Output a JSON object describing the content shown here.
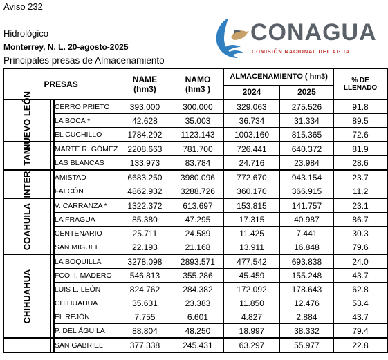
{
  "header": {
    "line1": "Aviso 232",
    "line2": "Hidrológico",
    "line3": "Monterrey, N. L. 20-agosto-2025",
    "line4": "Principales presas de Almacenamiento"
  },
  "logo": {
    "word": "CONAGUA",
    "subtitle": "COMISIÓN NACIONAL DEL AGUA",
    "colors": {
      "blue": "#2f7fc1",
      "red": "#c1342f",
      "gray": "#5a6168",
      "sand": "#c8a06a"
    }
  },
  "table": {
    "col_presas": "PRESAS",
    "col_name": "NAME",
    "col_name_unit": "(hm3)",
    "col_namo": "NAMO",
    "col_namo_unit": "(hm3 )",
    "col_alm": "ALMACENAMIENTO ( hm3)",
    "col_2024": "2024",
    "col_2025": "2025",
    "col_pct": "% DE LLENADO",
    "groups": [
      {
        "state": "NUEVO LEÓN",
        "rows": [
          {
            "presa": "CERRO PRIETO",
            "name": "393.000",
            "namo": "300.000",
            "y2024": "329.063",
            "y2025": "275.526",
            "pct": "91.8"
          },
          {
            "presa": "LA BOCA *",
            "name": "42.628",
            "namo": "35.003",
            "y2024": "36.734",
            "y2025": "31.334",
            "pct": "89.5"
          },
          {
            "presa": "EL CUCHILLO",
            "name": "1784.292",
            "namo": "1123.143",
            "y2024": "1003.160",
            "y2025": "815.365",
            "pct": "72.6"
          }
        ]
      },
      {
        "state": "TAM",
        "rows": [
          {
            "presa": "MARTE R. GÓMEZ",
            "name": "2208.663",
            "namo": "781.700",
            "y2024": "726.441",
            "y2025": "640.372",
            "pct": "81.9"
          },
          {
            "presa": "LAS BLANCAS",
            "name": "133.973",
            "namo": "83.784",
            "y2024": "24.716",
            "y2025": "23.984",
            "pct": "28.6"
          }
        ]
      },
      {
        "state": "INTER",
        "rows": [
          {
            "presa": "AMISTAD",
            "name": "6683.250",
            "namo": "3980.096",
            "y2024": "772.670",
            "y2025": "943.154",
            "pct": "23.7"
          },
          {
            "presa": "FALCÓN",
            "name": "4862.932",
            "namo": "3288.726",
            "y2024": "360.170",
            "y2025": "366.915",
            "pct": "11.2"
          }
        ]
      },
      {
        "state": "COAHUILA",
        "rows": [
          {
            "presa": "V. CARRANZA *",
            "name": "1322.372",
            "namo": "613.697",
            "y2024": "153.815",
            "y2025": "141.757",
            "pct": "23.1"
          },
          {
            "presa": "LA FRAGUA",
            "name": "85.380",
            "namo": "47.295",
            "y2024": "17.315",
            "y2025": "40.987",
            "pct": "86.7"
          },
          {
            "presa": "CENTENARIO",
            "name": "25.711",
            "namo": "24.589",
            "y2024": "11.425",
            "y2025": "7.441",
            "pct": "30.3"
          },
          {
            "presa": "SAN MIGUEL",
            "name": "22.193",
            "namo": "21.168",
            "y2024": "13.911",
            "y2025": "16.848",
            "pct": "79.6"
          }
        ]
      },
      {
        "state": "CHIHUAHUA",
        "rows": [
          {
            "presa": "LA BOQUILLA",
            "name": "3278.098",
            "namo": "2893.571",
            "y2024": "477.542",
            "y2025": "693.838",
            "pct": "24.0"
          },
          {
            "presa": "FCO. I. MADERO",
            "name": "546.813",
            "namo": "355.286",
            "y2024": "45.459",
            "y2025": "155.248",
            "pct": "43.7"
          },
          {
            "presa": "LUIS L. LEÓN",
            "name": "824.762",
            "namo": "284.382",
            "y2024": "172.092",
            "y2025": "178.643",
            "pct": "62.8"
          },
          {
            "presa": "CHIHUAHUA",
            "name": "35.631",
            "namo": "23.383",
            "y2024": "11.850",
            "y2025": "12.476",
            "pct": "53.4"
          },
          {
            "presa": "EL REJÓN",
            "name": "7.755",
            "namo": "6.601",
            "y2024": "4.827",
            "y2025": "2.884",
            "pct": "43.7"
          },
          {
            "presa": "P. DEL ÁGUILA",
            "name": "88.804",
            "namo": "48.250",
            "y2024": "18.997",
            "y2025": "38.332",
            "pct": "79.4"
          }
        ]
      },
      {
        "state": "",
        "rows": [
          {
            "presa": "SAN GABRIEL",
            "name": "377.338",
            "namo": "245.431",
            "y2024": "63.297",
            "y2025": "55.977",
            "pct": "22.8"
          }
        ]
      }
    ]
  }
}
